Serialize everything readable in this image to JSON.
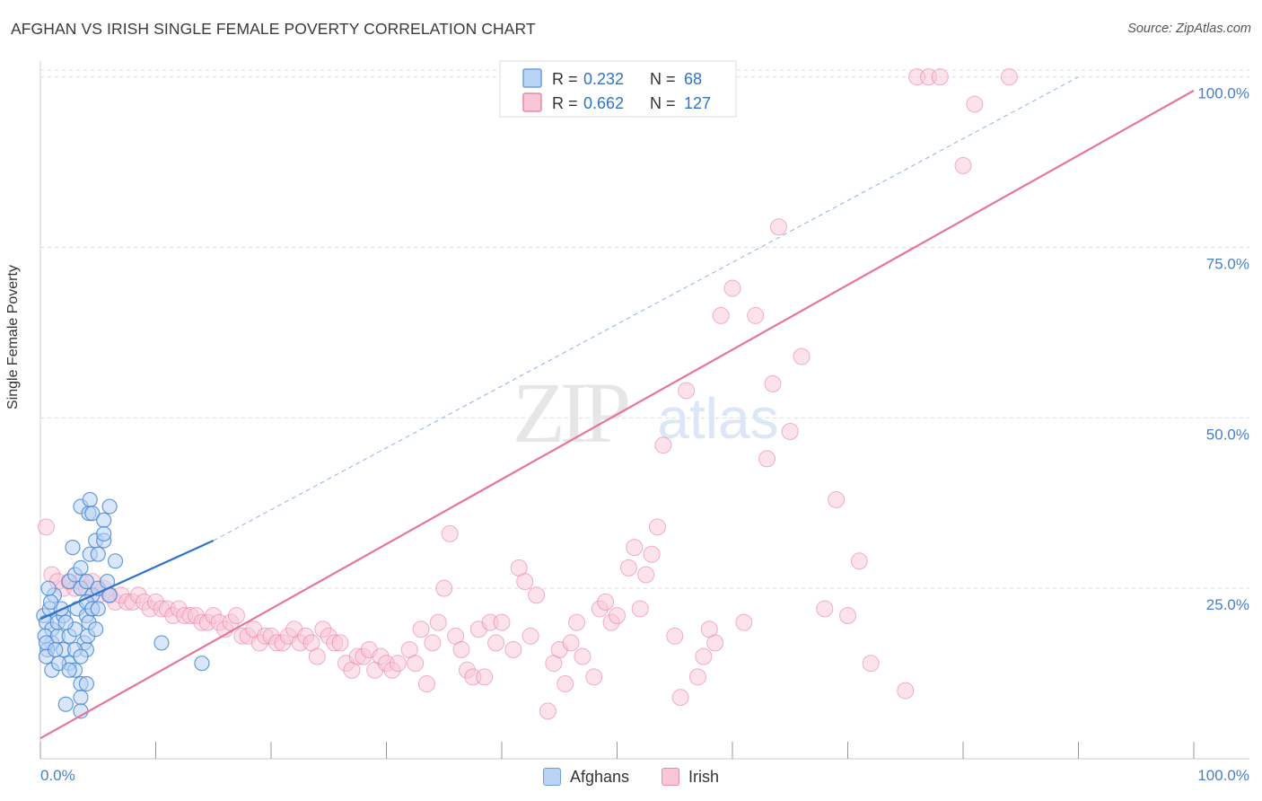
{
  "title": "AFGHAN VS IRISH SINGLE FEMALE POVERTY CORRELATION CHART",
  "source": "Source: ZipAtlas.com",
  "colors": {
    "afghans": "#4a8ad8",
    "afghans_fill": "#b9d3f4",
    "irish": "#e8749a",
    "irish_fill": "#f9c6d6",
    "grid": "#dddddd",
    "axis_tick_text": "#4a7fc4"
  },
  "legend_box": {
    "row1": {
      "r_label": "R =",
      "r_value": "0.232",
      "n_label": "N =",
      "n_value": "68"
    },
    "row2": {
      "r_label": "R =",
      "r_value": "0.662",
      "n_label": "N =",
      "n_value": "127"
    }
  },
  "bottom_legend": {
    "afghans": "Afghans",
    "irish": "Irish"
  },
  "watermark": {
    "zip": "ZIP",
    "atlas": "atlas"
  },
  "chart_data": {
    "type": "scatter",
    "title": "AFGHAN VS IRISH SINGLE FEMALE POVERTY CORRELATION CHART",
    "xlabel": "",
    "ylabel": "Single Female Poverty",
    "xlim": [
      0,
      100
    ],
    "ylim": [
      0,
      100
    ],
    "x_tick_labels": [
      "0.0%",
      "100.0%"
    ],
    "y_tick_labels": [
      "25.0%",
      "50.0%",
      "75.0%",
      "100.0%"
    ],
    "y_ticks": [
      25,
      50,
      75,
      100
    ],
    "grid": true,
    "legend_position": "top-center",
    "series": [
      {
        "name": "Afghans",
        "r": 0.232,
        "n": 68,
        "trend": {
          "x0": 0,
          "y0": 20.5,
          "x1": 15,
          "y1": 32,
          "dashed_to": [
            90,
            100
          ]
        },
        "points": [
          [
            0.3,
            21
          ],
          [
            0.5,
            20
          ],
          [
            0.8,
            22
          ],
          [
            1,
            19
          ],
          [
            1,
            17
          ],
          [
            1.2,
            24
          ],
          [
            0.4,
            18
          ],
          [
            0.6,
            16
          ],
          [
            1.5,
            18
          ],
          [
            1.5,
            20
          ],
          [
            2,
            16
          ],
          [
            2,
            21
          ],
          [
            2.5,
            18
          ],
          [
            2.5,
            14
          ],
          [
            3,
            19
          ],
          [
            3,
            13
          ],
          [
            1.8,
            22
          ],
          [
            2.2,
            20
          ],
          [
            0.9,
            23
          ],
          [
            0.7,
            25
          ],
          [
            0.5,
            17
          ],
          [
            0.5,
            15
          ],
          [
            1,
            13
          ],
          [
            1.3,
            16
          ],
          [
            1.6,
            14
          ],
          [
            2.5,
            26
          ],
          [
            2.8,
            31
          ],
          [
            3,
            27
          ],
          [
            3.2,
            22
          ],
          [
            3.5,
            28
          ],
          [
            3.5,
            25
          ],
          [
            3.5,
            37
          ],
          [
            3.8,
            17
          ],
          [
            4,
            16
          ],
          [
            4,
            26
          ],
          [
            4,
            21
          ],
          [
            4.3,
            30
          ],
          [
            4.5,
            24
          ],
          [
            4.2,
            20
          ],
          [
            4.1,
            18
          ],
          [
            4.5,
            22
          ],
          [
            2.2,
            8
          ],
          [
            2.5,
            13
          ],
          [
            3,
            16
          ],
          [
            3.5,
            11
          ],
          [
            3.5,
            9
          ],
          [
            3.5,
            7
          ],
          [
            3.5,
            15
          ],
          [
            4,
            23
          ],
          [
            4,
            11
          ],
          [
            4.5,
            22
          ],
          [
            4.8,
            19
          ],
          [
            4.8,
            32
          ],
          [
            4.2,
            36
          ],
          [
            4.3,
            38
          ],
          [
            4.5,
            36
          ],
          [
            5,
            25
          ],
          [
            5,
            30
          ],
          [
            5,
            22
          ],
          [
            5.5,
            32
          ],
          [
            5.8,
            26
          ],
          [
            6,
            24
          ],
          [
            5.5,
            35
          ],
          [
            6,
            37
          ],
          [
            5.5,
            33
          ],
          [
            6.5,
            29
          ],
          [
            10.5,
            17
          ],
          [
            14,
            14
          ]
        ]
      },
      {
        "name": "Irish",
        "r": 0.662,
        "n": 127,
        "trend": {
          "x0": 0,
          "y0": 3,
          "x1": 100,
          "y1": 98
        },
        "points": [
          [
            0.5,
            34
          ],
          [
            1,
            27
          ],
          [
            1.5,
            26
          ],
          [
            2,
            25
          ],
          [
            2.5,
            26
          ],
          [
            3,
            25
          ],
          [
            3.5,
            26
          ],
          [
            4,
            25
          ],
          [
            4.5,
            26
          ],
          [
            5,
            24
          ],
          [
            5.5,
            25
          ],
          [
            6,
            24
          ],
          [
            6.5,
            23
          ],
          [
            7,
            24
          ],
          [
            7.5,
            23
          ],
          [
            8,
            23
          ],
          [
            8.5,
            24
          ],
          [
            9,
            23
          ],
          [
            9.5,
            22
          ],
          [
            10,
            23
          ],
          [
            10.5,
            22
          ],
          [
            11,
            22
          ],
          [
            11.5,
            21
          ],
          [
            12,
            22
          ],
          [
            12.5,
            21
          ],
          [
            13,
            21
          ],
          [
            13.5,
            21
          ],
          [
            14,
            20
          ],
          [
            14.5,
            20
          ],
          [
            15,
            21
          ],
          [
            15.5,
            20
          ],
          [
            16,
            19
          ],
          [
            16.5,
            20
          ],
          [
            17,
            21
          ],
          [
            17.5,
            18
          ],
          [
            18,
            18
          ],
          [
            18.5,
            19
          ],
          [
            19,
            17
          ],
          [
            19.5,
            18
          ],
          [
            20,
            18
          ],
          [
            20.5,
            17
          ],
          [
            21,
            17
          ],
          [
            21.5,
            18
          ],
          [
            22,
            19
          ],
          [
            22.5,
            17
          ],
          [
            23,
            18
          ],
          [
            23.5,
            17
          ],
          [
            24,
            15
          ],
          [
            24.5,
            19
          ],
          [
            25,
            18
          ],
          [
            25.5,
            17
          ],
          [
            26,
            17
          ],
          [
            26.5,
            14
          ],
          [
            27,
            13
          ],
          [
            27.5,
            15
          ],
          [
            28,
            15
          ],
          [
            28.5,
            16
          ],
          [
            29,
            13
          ],
          [
            29.5,
            15
          ],
          [
            30,
            14
          ],
          [
            30.5,
            13
          ],
          [
            31,
            14
          ],
          [
            32,
            16
          ],
          [
            32.5,
            14
          ],
          [
            33,
            19
          ],
          [
            33.5,
            11
          ],
          [
            34,
            17
          ],
          [
            34.5,
            20
          ],
          [
            35,
            25
          ],
          [
            35.5,
            33
          ],
          [
            36,
            18
          ],
          [
            36.5,
            16
          ],
          [
            37,
            13
          ],
          [
            37.5,
            12
          ],
          [
            38,
            19
          ],
          [
            38.5,
            12
          ],
          [
            39,
            20
          ],
          [
            39.5,
            17
          ],
          [
            40,
            20
          ],
          [
            41,
            16
          ],
          [
            41.5,
            28
          ],
          [
            42,
            26
          ],
          [
            42.5,
            18
          ],
          [
            43,
            24
          ],
          [
            44,
            7
          ],
          [
            44.5,
            14
          ],
          [
            45,
            16
          ],
          [
            45.5,
            11
          ],
          [
            46,
            17
          ],
          [
            46.5,
            20
          ],
          [
            47,
            15
          ],
          [
            48,
            12
          ],
          [
            48.5,
            22
          ],
          [
            49,
            23
          ],
          [
            49.5,
            20
          ],
          [
            50,
            21
          ],
          [
            51,
            28
          ],
          [
            51.5,
            31
          ],
          [
            52,
            22
          ],
          [
            52.5,
            27
          ],
          [
            53,
            30
          ],
          [
            53.5,
            34
          ],
          [
            54,
            46
          ],
          [
            55,
            18
          ],
          [
            55.5,
            9
          ],
          [
            56,
            54
          ],
          [
            57,
            12
          ],
          [
            57.5,
            15
          ],
          [
            58,
            19
          ],
          [
            58.5,
            17
          ],
          [
            59,
            65
          ],
          [
            60,
            69
          ],
          [
            61,
            20
          ],
          [
            62,
            65
          ],
          [
            63,
            44
          ],
          [
            63.5,
            55
          ],
          [
            64,
            78
          ],
          [
            65,
            48
          ],
          [
            66,
            59
          ],
          [
            68,
            22
          ],
          [
            69,
            38
          ],
          [
            70,
            21
          ],
          [
            71,
            29
          ],
          [
            72,
            14
          ],
          [
            75,
            10
          ],
          [
            76,
            100
          ],
          [
            77,
            100
          ],
          [
            78,
            100
          ],
          [
            80,
            87
          ],
          [
            81,
            96
          ],
          [
            84,
            100
          ]
        ]
      }
    ]
  }
}
